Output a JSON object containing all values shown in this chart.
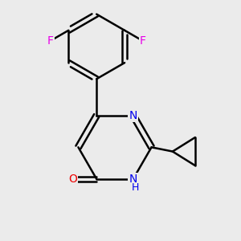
{
  "background_color": "#ebebeb",
  "bond_color": "#000000",
  "bond_width": 1.8,
  "atom_colors": {
    "F": "#e800e8",
    "N": "#0000ee",
    "O": "#ee0000",
    "C": "#000000",
    "H": "#000000"
  },
  "font_size": 10
}
